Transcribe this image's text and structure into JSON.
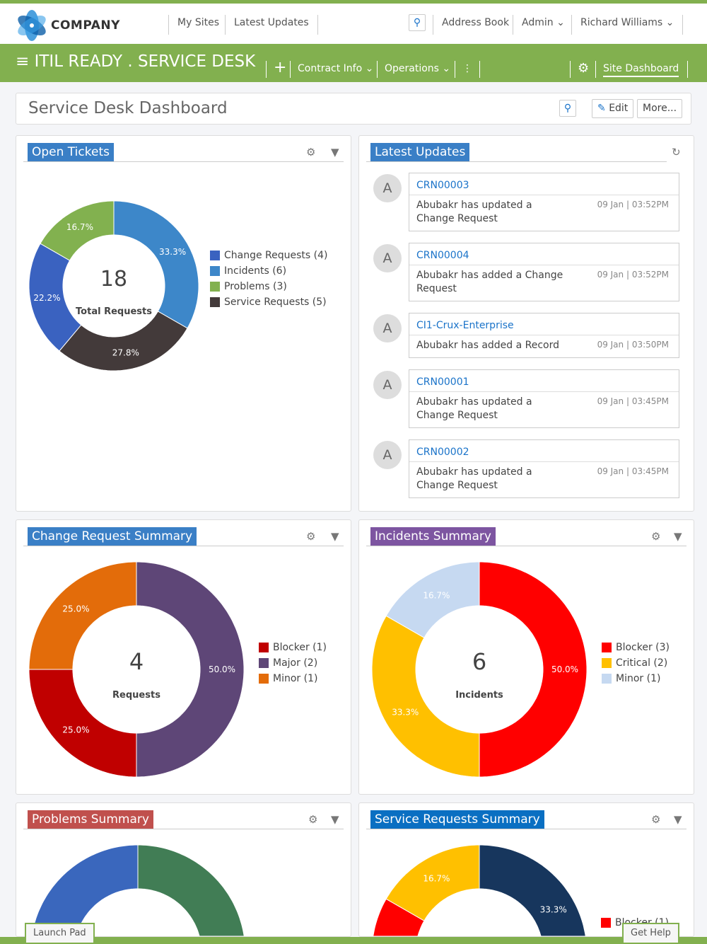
{
  "header": {
    "logo_text": "COMPANY",
    "nav": [
      "My Sites",
      "Latest Updates"
    ],
    "address_book": "Address Book",
    "admin": "Admin",
    "user": "Richard Williams"
  },
  "appbar": {
    "title": "ITIL READY . SERVICE DESK",
    "contract_info": "Contract Info",
    "operations": "Operations",
    "site_dashboard": "Site Dashboard"
  },
  "page": {
    "title": "Service Desk Dashboard",
    "edit": "Edit",
    "more": "More..."
  },
  "colors": {
    "brand_green": "#82b04f",
    "link": "#1a73c9"
  },
  "panels": {
    "open_tickets": {
      "title": "Open Tickets",
      "title_color": "#3a7fc6"
    },
    "latest_updates": {
      "title": "Latest Updates",
      "title_color": "#3a7fc6",
      "items": [
        {
          "avatar": "A",
          "link": "CRN00003",
          "message": "Abubakr has updated a Change Request",
          "date": "09 Jan | 03:52PM"
        },
        {
          "avatar": "A",
          "link": "CRN00004",
          "message": "Abubakr has added a Change Request",
          "date": "09 Jan | 03:52PM"
        },
        {
          "avatar": "A",
          "link": "CI1-Crux-Enterprise",
          "message": "Abubakr has added a Record",
          "date": "09 Jan | 03:50PM"
        },
        {
          "avatar": "A",
          "link": "CRN00001",
          "message": "Abubakr has updated a Change Request",
          "date": "09 Jan | 03:45PM"
        },
        {
          "avatar": "A",
          "link": "CRN00002",
          "message": "Abubakr has updated a Change Request",
          "date": "09 Jan | 03:45PM"
        }
      ]
    },
    "change_summary": {
      "title": "Change Request Summary",
      "title_color": "#3a7fc6"
    },
    "incidents_summary": {
      "title": "Incidents Summary",
      "title_color": "#7d55a1"
    },
    "problems_summary": {
      "title": "Problems Summary",
      "title_color": "#c0504d"
    },
    "service_summary": {
      "title": "Service Requests Summary",
      "title_color": "#0a6fc2"
    }
  },
  "chart_data": [
    {
      "type": "pie",
      "id": "open",
      "center_value": "18",
      "center_label": "Total Requests",
      "slices": [
        {
          "label": "Incidents (6)",
          "value": 33.3,
          "text": "33.3%",
          "color": "#3d87c9"
        },
        {
          "label": "Service Requests (5)",
          "value": 27.8,
          "text": "27.8%",
          "color": "#433a3a"
        },
        {
          "label": "Change Requests (4)",
          "value": 22.2,
          "text": "22.2%",
          "color": "#3a62c0"
        },
        {
          "label": "Problems (3)",
          "value": 16.7,
          "text": "16.7%",
          "color": "#82b14f"
        }
      ],
      "legend": [
        "Change Requests (4)",
        "Incidents (6)",
        "Problems (3)",
        "Service Requests (5)"
      ],
      "legend_colors": [
        "#3a62c0",
        "#3d87c9",
        "#82b14f",
        "#433a3a"
      ]
    },
    {
      "type": "pie",
      "id": "change",
      "center_value": "4",
      "center_label": "Requests",
      "slices": [
        {
          "label": "Major (2)",
          "value": 50,
          "text": "50.0%",
          "color": "#5e4677"
        },
        {
          "label": "Blocker (1)",
          "value": 25,
          "text": "25.0%",
          "color": "#c00000"
        },
        {
          "label": "Minor (1)",
          "value": 25,
          "text": "25.0%",
          "color": "#e36c0a"
        }
      ],
      "legend": [
        "Blocker (1)",
        "Major (2)",
        "Minor (1)"
      ],
      "legend_colors": [
        "#c00000",
        "#5e4677",
        "#e36c0a"
      ]
    },
    {
      "type": "pie",
      "id": "incidents",
      "center_value": "6",
      "center_label": "Incidents",
      "slices": [
        {
          "label": "Blocker (3)",
          "value": 50,
          "text": "50.0%",
          "color": "#ff0000"
        },
        {
          "label": "Critical (2)",
          "value": 33.3,
          "text": "33.3%",
          "color": "#ffc000"
        },
        {
          "label": "Minor (1)",
          "value": 16.7,
          "text": "16.7%",
          "color": "#c6d9f1"
        }
      ],
      "legend": [
        "Blocker (3)",
        "Critical (2)",
        "Minor (1)"
      ],
      "legend_colors": [
        "#ff0000",
        "#ffc000",
        "#c6d9f1"
      ]
    },
    {
      "type": "pie",
      "id": "problems",
      "slices": [
        {
          "value": 50,
          "text": "",
          "color": "#417d55"
        },
        {
          "value": 50,
          "text": "",
          "color": "#3a67bd"
        }
      ]
    },
    {
      "type": "pie",
      "id": "service",
      "slices": [
        {
          "value": 33.3,
          "text": "33.3%",
          "color": "#17365d"
        },
        {
          "value": 50,
          "text": "",
          "color": "#ff0000"
        },
        {
          "value": 16.7,
          "text": "16.7%",
          "color": "#ffc000"
        }
      ],
      "legend": [
        "Blocker (1)"
      ],
      "legend_colors": [
        "#ff0000"
      ]
    }
  ],
  "footer": {
    "launch_pad": "Launch Pad",
    "get_help": "Get Help"
  }
}
